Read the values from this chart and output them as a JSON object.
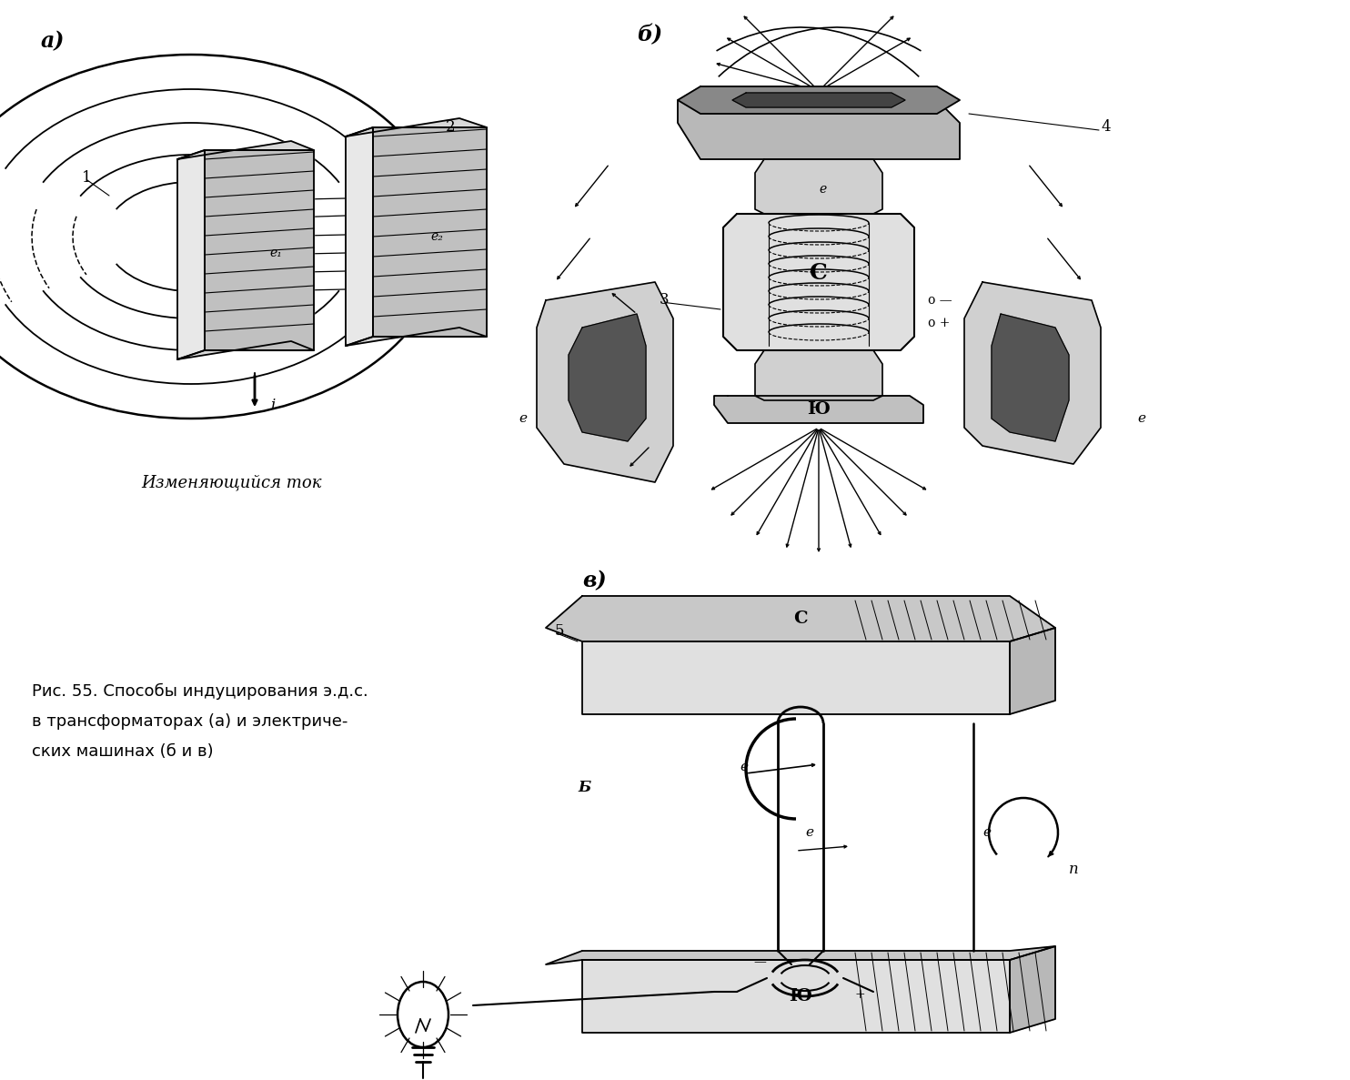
{
  "bg_color": "#ffffff",
  "fig_width": 14.84,
  "fig_height": 11.87,
  "caption_line1": "Рис. 55. Способы индуцирования э.д.с.",
  "caption_line2": "в трансформаторах (а) и электриче-",
  "caption_line3": "ских машинах (б и в)",
  "label_a": "а)",
  "label_b": "б)",
  "label_v": "в)",
  "label_izm": "Изменяющийся ток"
}
